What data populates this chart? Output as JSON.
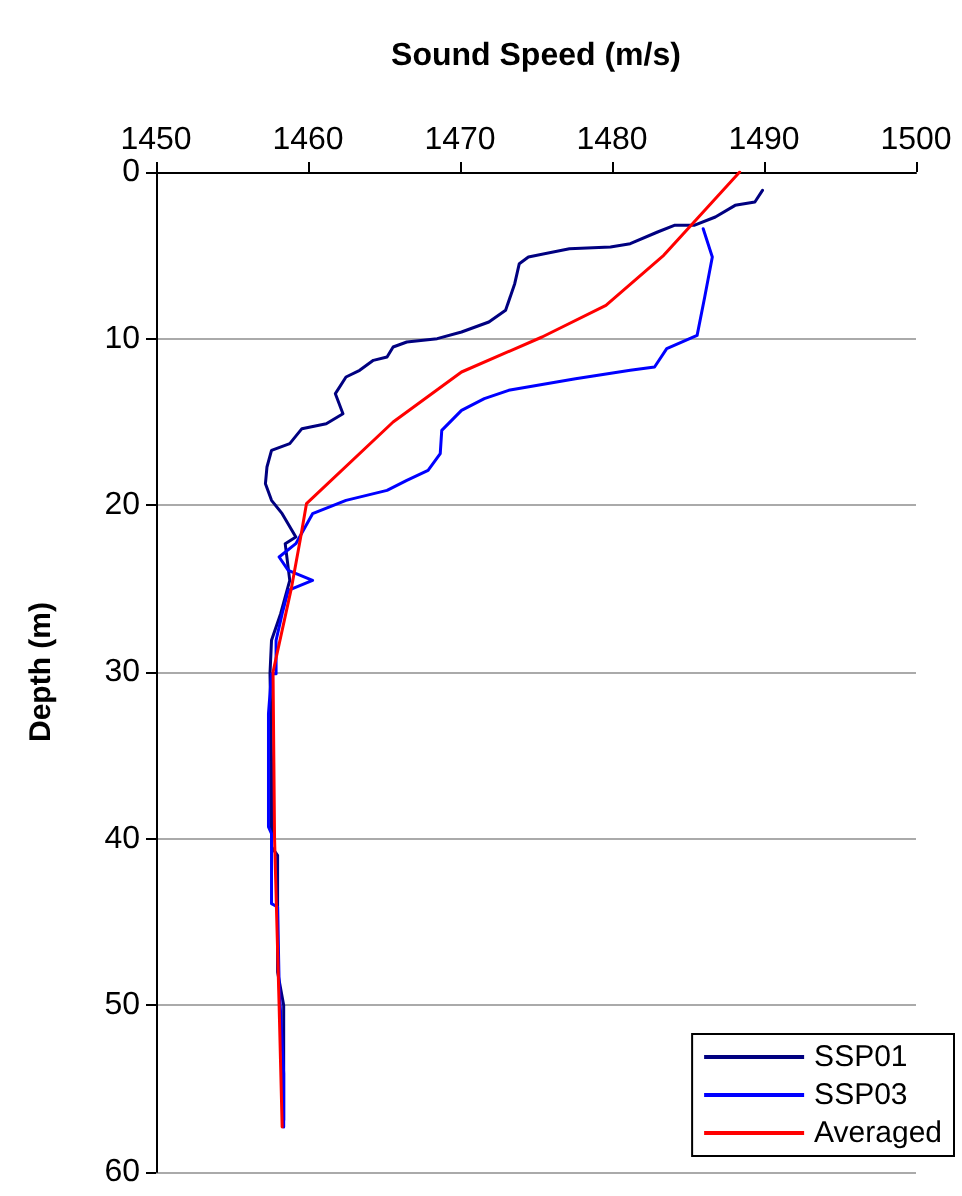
{
  "chart_data": {
    "type": "line",
    "xlabel": "Sound Speed (m/s)",
    "ylabel": "Depth (m)",
    "xlim": [
      1450,
      1500
    ],
    "xticks": [
      1450,
      1460,
      1470,
      1480,
      1490,
      1500
    ],
    "ylim": [
      60,
      0
    ],
    "yticks": [
      0,
      10,
      20,
      30,
      40,
      50,
      60
    ],
    "grid": "y",
    "legend": "bottom right",
    "marker": "none",
    "line_style": "solid",
    "series": [
      {
        "name": "SSP01",
        "color": "#000080",
        "x": [
          1489.9,
          1489.4,
          1488.1,
          1486.8,
          1485.4,
          1484.1,
          1483.0,
          1481.2,
          1479.9,
          1477.2,
          1474.5,
          1473.9,
          1473.6,
          1473.0,
          1471.9,
          1470.1,
          1468.5,
          1466.5,
          1465.6,
          1465.2,
          1464.3,
          1463.4,
          1462.5,
          1461.8,
          1462.3,
          1461.2,
          1459.6,
          1458.8,
          1457.6,
          1457.3,
          1457.2,
          1457.6,
          1458.3,
          1459.2,
          1458.5,
          1458.8,
          1458.2,
          1457.6,
          1457.5,
          1457.6,
          1457.6,
          1458.0,
          1458.0,
          1458.4,
          1458.4
        ],
        "values": [
          1.1,
          1.8,
          2.0,
          2.7,
          3.2,
          3.2,
          3.6,
          4.3,
          4.5,
          4.6,
          5.1,
          5.5,
          6.7,
          8.3,
          9.0,
          9.6,
          10.0,
          10.2,
          10.5,
          11.1,
          11.3,
          11.9,
          12.3,
          13.3,
          14.5,
          15.1,
          15.4,
          16.3,
          16.7,
          17.7,
          18.7,
          19.7,
          20.5,
          21.9,
          22.3,
          24.5,
          26.5,
          28.1,
          30.1,
          35.3,
          40.5,
          41.0,
          48.0,
          50.0,
          56.9
        ]
      },
      {
        "name": "SSP03",
        "color": "#0000ff",
        "x": [
          1486.0,
          1486.6,
          1486.1,
          1485.6,
          1483.6,
          1482.8,
          1481.2,
          1477.6,
          1473.2,
          1471.6,
          1470.1,
          1468.8,
          1468.7,
          1467.9,
          1466.5,
          1465.2,
          1462.5,
          1460.3,
          1459.2,
          1458.1,
          1458.7,
          1460.3,
          1458.7,
          1458.3,
          1457.9,
          1457.9,
          1457.6,
          1457.4,
          1457.4,
          1457.6,
          1457.6,
          1458.0,
          1458.1,
          1458.4,
          1458.4
        ],
        "values": [
          3.4,
          5.1,
          7.5,
          9.8,
          10.6,
          11.7,
          11.9,
          12.4,
          13.1,
          13.6,
          14.3,
          15.5,
          16.9,
          17.9,
          18.5,
          19.1,
          19.7,
          20.5,
          22.3,
          23.1,
          23.9,
          24.5,
          25.1,
          26.5,
          28.1,
          30.1,
          30.1,
          32.5,
          39.3,
          39.7,
          43.9,
          44.1,
          48.7,
          54.1,
          57.3
        ]
      },
      {
        "name": "Averaged",
        "color": "#ff0000",
        "x": [
          1488.4,
          1485.4,
          1483.4,
          1479.6,
          1475.4,
          1470.1,
          1465.6,
          1459.9,
          1459.5,
          1458.9,
          1457.7,
          1457.8,
          1458.1,
          1458.3
        ],
        "values": [
          0,
          3.0,
          5.0,
          8.0,
          9.9,
          12.0,
          15.0,
          19.9,
          22,
          25,
          30,
          40,
          50,
          57.3
        ]
      }
    ]
  }
}
